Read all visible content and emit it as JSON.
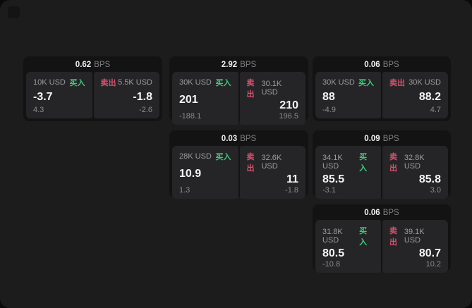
{
  "labels": {
    "bps_unit": "BPS",
    "buy": "买入",
    "sell": "卖出"
  },
  "colors": {
    "window_bg": "#1c1c1d",
    "card_bg": "#131314",
    "panel_bg": "#252527",
    "buy_green": "#3fc97c",
    "sell_red": "#d8506f",
    "value_text": "#f5f5f5",
    "muted_text": "#8b8b8d"
  },
  "cards": [
    {
      "bps": "0.62",
      "buy": {
        "amount": "10K USD",
        "value": "-3.7",
        "delta": "4.3"
      },
      "sell": {
        "amount": "5.5K USD",
        "value": "-1.8",
        "delta": "-2.6"
      }
    },
    {
      "bps": "2.92",
      "buy": {
        "amount": "30K USD",
        "value": "201",
        "delta": "-188.1"
      },
      "sell": {
        "amount": "30.1K USD",
        "value": "210",
        "delta": "196.5"
      }
    },
    {
      "bps": "0.06",
      "buy": {
        "amount": "30K USD",
        "value": "88",
        "delta": "-4.9"
      },
      "sell": {
        "amount": "30K USD",
        "value": "88.2",
        "delta": "4.7"
      }
    },
    {
      "bps": "0.03",
      "buy": {
        "amount": "28K USD",
        "value": "10.9",
        "delta": "1.3"
      },
      "sell": {
        "amount": "32.6K USD",
        "value": "11",
        "delta": "-1.8"
      }
    },
    {
      "bps": "0.09",
      "buy": {
        "amount": "34.1K USD",
        "value": "85.5",
        "delta": "-3.1"
      },
      "sell": {
        "amount": "32.8K USD",
        "value": "85.8",
        "delta": "3.0"
      }
    },
    {
      "bps": "0.06",
      "buy": {
        "amount": "31.8K USD",
        "value": "80.5",
        "delta": "-10.8"
      },
      "sell": {
        "amount": "39.1K USD",
        "value": "80.7",
        "delta": "10.2"
      }
    }
  ]
}
